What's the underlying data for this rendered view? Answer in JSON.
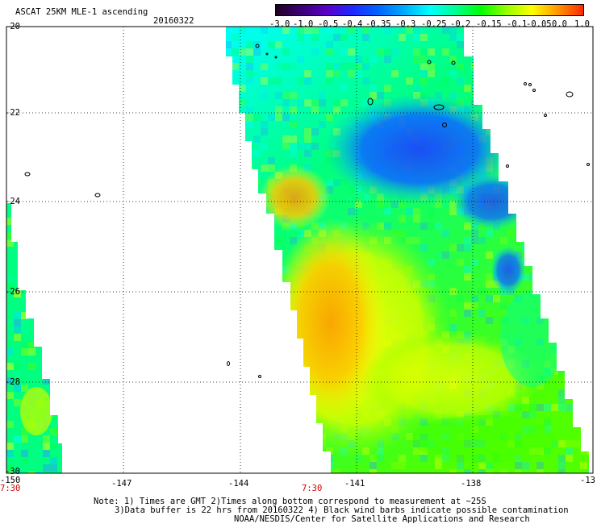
{
  "header": {
    "title": "ASCAT 25KM MLE-1 ascending",
    "date": "20160322"
  },
  "colorbar": {
    "labels": [
      "-3.0",
      "-1.0",
      "-0.5",
      "-0.4",
      "-0.35",
      "-0.3",
      "-0.25",
      "-0.2",
      "-0.15",
      "-0.1",
      "-0.05",
      "0.0",
      "1.0"
    ],
    "colors": [
      "#200020",
      "#3c0078",
      "#5a00c8",
      "#1e28ff",
      "#0064ff",
      "#00aaff",
      "#00ffff",
      "#00ff96",
      "#00ff00",
      "#96ff00",
      "#ffff00",
      "#ff9600",
      "#ff2800"
    ]
  },
  "axes": {
    "lat_labels": [
      "-20",
      "-22",
      "-24",
      "-26",
      "-28",
      "-30"
    ],
    "lon_labels": [
      "-150",
      "-147",
      "-144",
      "-141",
      "-138",
      "-13"
    ]
  },
  "times": [
    "7:30",
    "7:30"
  ],
  "notes": [
    "Note: 1) Times are GMT 2)Times along bottom correspond to measurement at ~25S",
    "3)Data buffer is 22 hrs from 20160322 4) Black wind barbs indicate possible contamination",
    "NOAA/NESDIS/Center for Satellite Applications and Research"
  ]
}
